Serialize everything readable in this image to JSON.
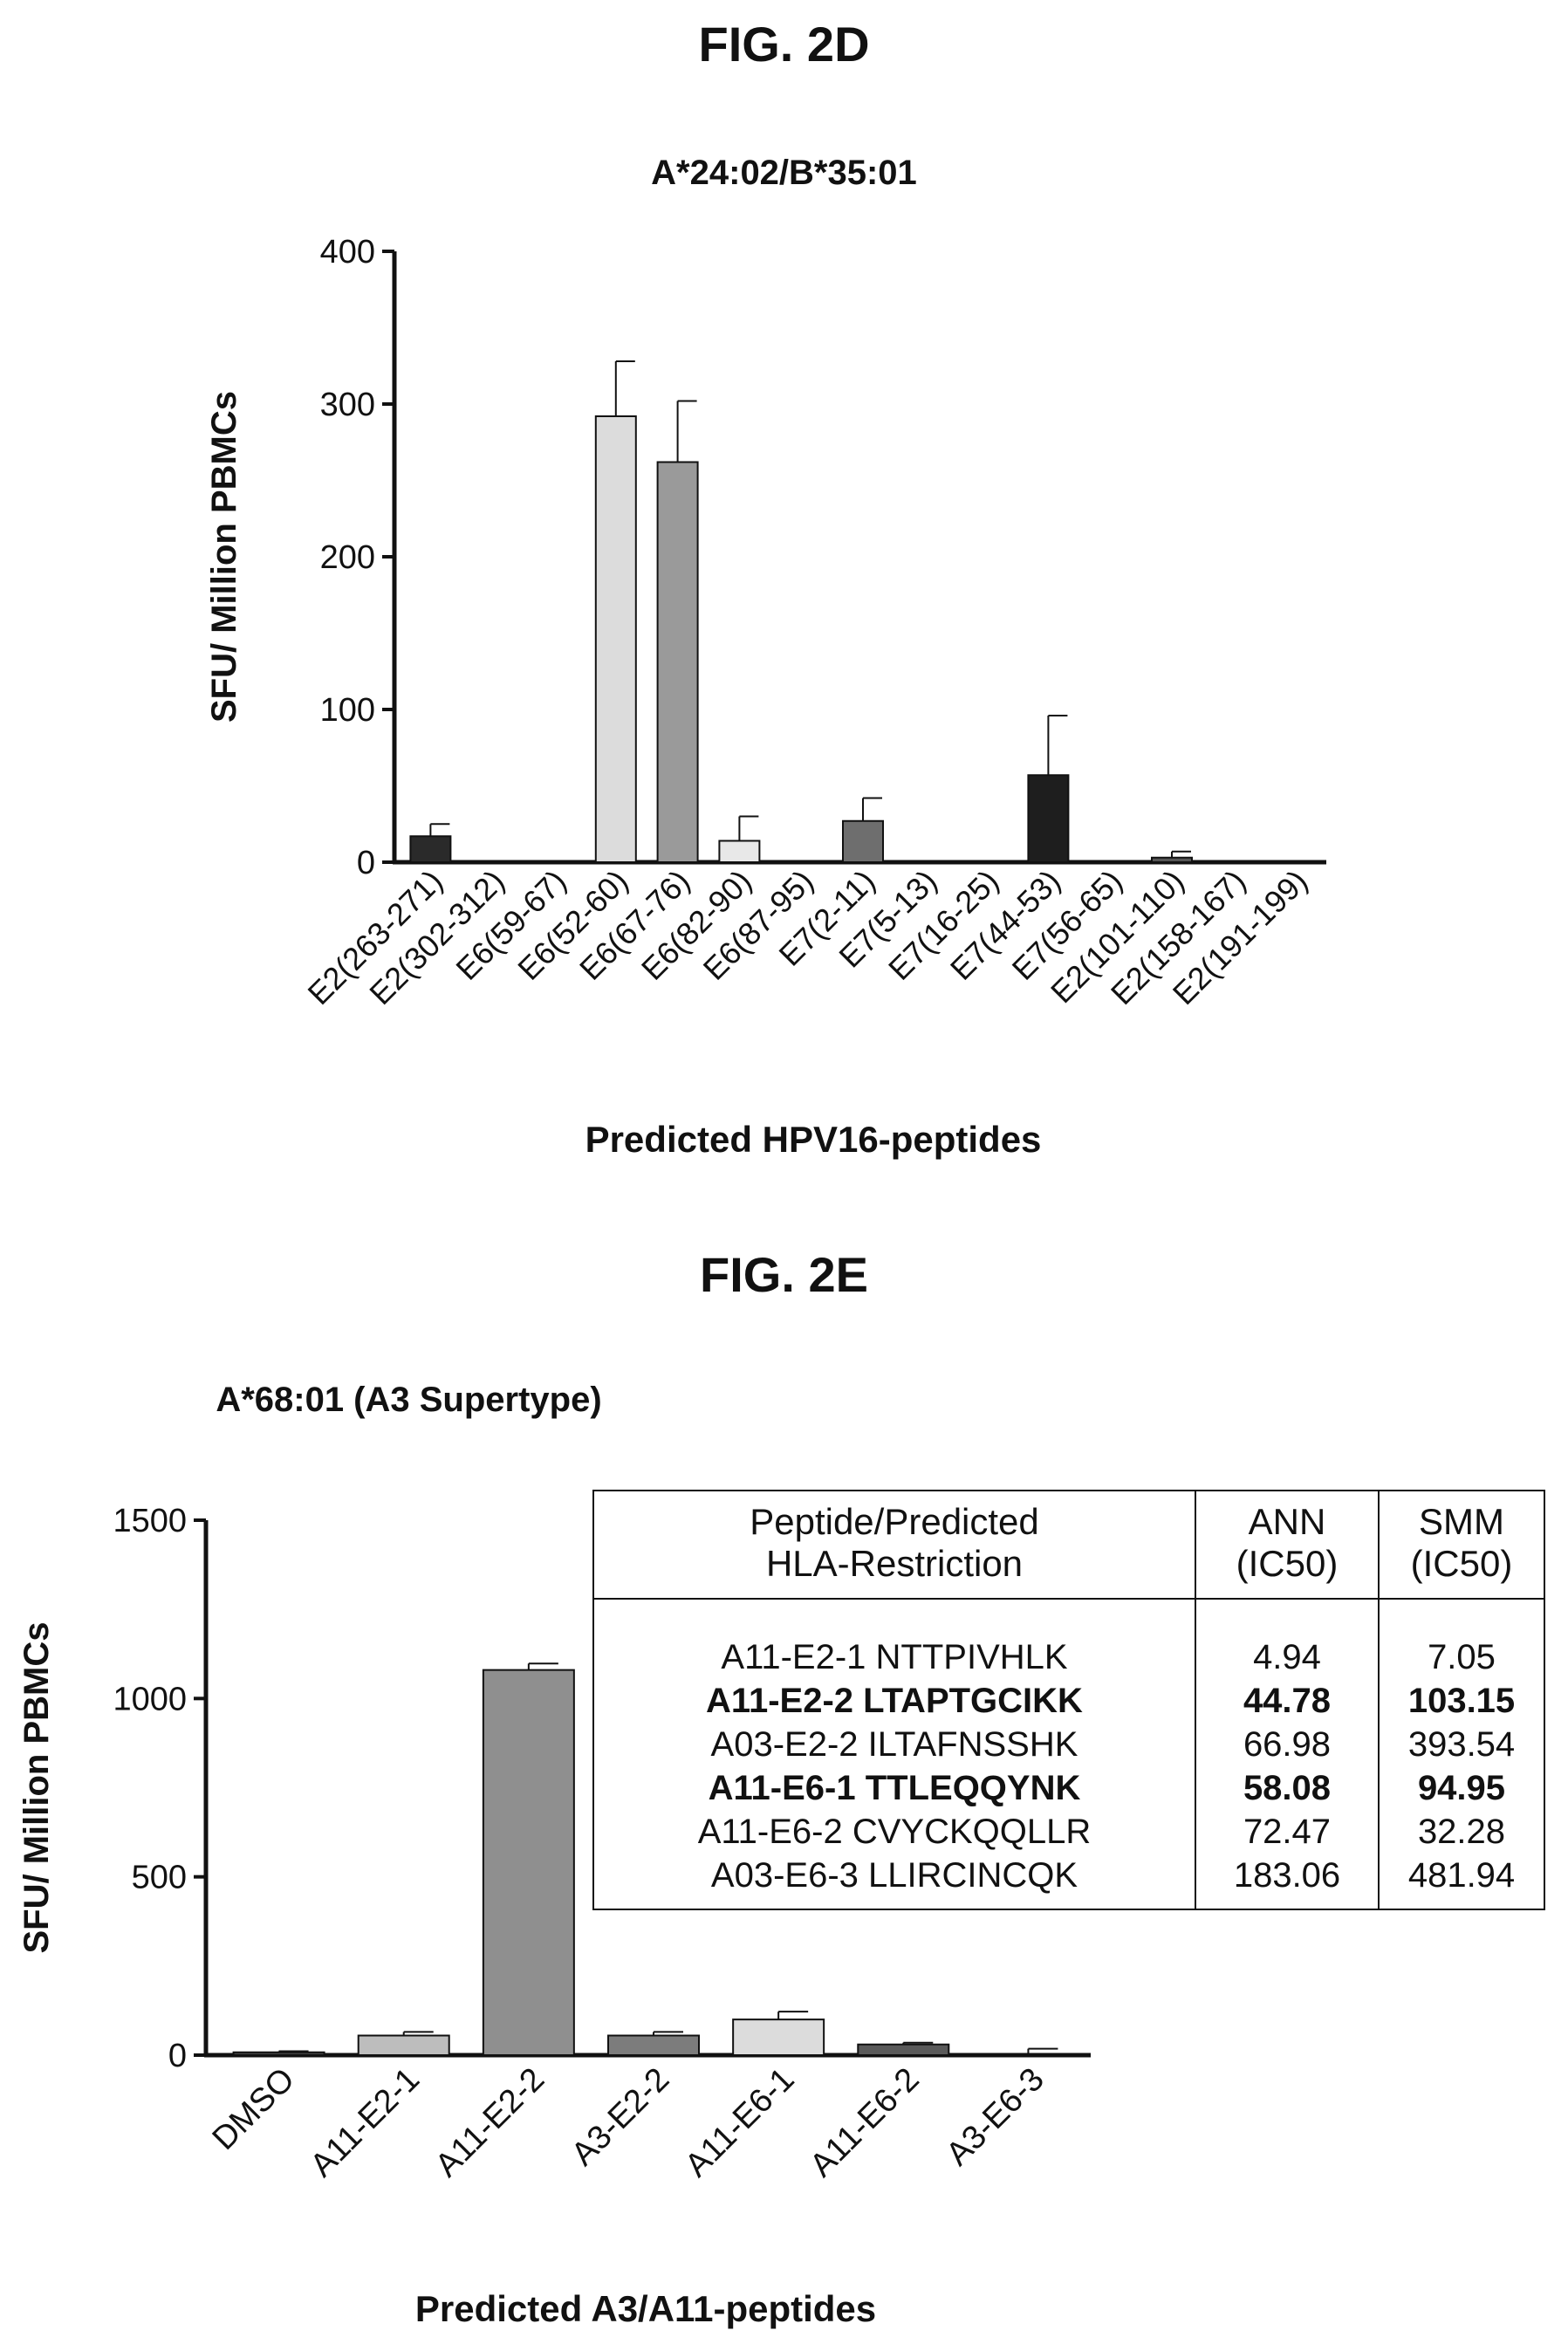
{
  "figure_d": {
    "label": "FIG. 2D"
  },
  "figure_e": {
    "label": "FIG. 2E"
  },
  "chart_data": [
    {
      "type": "bar",
      "title": "A*24:02/B*35:01",
      "xlabel": "Predicted HPV16-peptides",
      "ylabel": "SFU/ Million PBMCs",
      "ylim": [
        0,
        400
      ],
      "yticks": [
        0,
        100,
        200,
        300,
        400
      ],
      "categories": [
        "E2(263-271)",
        "E2(302-312)",
        "E6(59-67)",
        "E6(52-60)",
        "E6(67-76)",
        "E6(82-90)",
        "E6(87-95)",
        "E7(2-11)",
        "E7(5-13)",
        "E7(16-25)",
        "E7(44-53)",
        "E7(56-65)",
        "E2(101-110)",
        "E2(158-167)",
        "E2(191-199)"
      ],
      "values": [
        17,
        0,
        0,
        292,
        262,
        14,
        0,
        27,
        0,
        0,
        57,
        0,
        3,
        0,
        0
      ],
      "errors": [
        8,
        0,
        0,
        36,
        40,
        16,
        0,
        15,
        0,
        0,
        39,
        0,
        4,
        0,
        0
      ],
      "bar_colors": [
        "#2a2a2a",
        "#2a2a2a",
        "#2a2a2a",
        "#dcdcdc",
        "#9a9a9a",
        "#e8e8e8",
        "#2a2a2a",
        "#6e6e6e",
        "#2a2a2a",
        "#2a2a2a",
        "#1e1e1e",
        "#2a2a2a",
        "#555555",
        "#2a2a2a",
        "#2a2a2a"
      ],
      "grid": false
    },
    {
      "type": "bar",
      "title": "A*68:01 (A3 Supertype)",
      "xlabel": "Predicted A3/A11-peptides",
      "ylabel": "SFU/ Million PBMCs",
      "ylim": [
        0,
        1500
      ],
      "yticks": [
        0,
        500,
        1000,
        1500
      ],
      "categories": [
        "DMSO",
        "A11-E2-1",
        "A11-E2-2",
        "A3-E2-2",
        "A11-E6-1",
        "A11-E6-2",
        "A3-E6-3"
      ],
      "values": [
        8,
        55,
        1080,
        55,
        100,
        30,
        0
      ],
      "errors": [
        3,
        10,
        18,
        10,
        22,
        5,
        18
      ],
      "bar_colors": [
        "#444444",
        "#bdbdbd",
        "#8f8f8f",
        "#7c7c7c",
        "#dcdcdc",
        "#5a5a5a",
        "#444444"
      ],
      "grid": false,
      "inset_table": {
        "headers": [
          "Peptide/Predicted HLA-Restriction",
          "ANN (IC50)",
          "SMM (IC50)"
        ],
        "rows": [
          {
            "peptide": "A11-E2-1 NTTPIVHLK",
            "ann": "4.94",
            "smm": "7.05",
            "bold": false
          },
          {
            "peptide": "A11-E2-2 LTAPTGCIKK",
            "ann": "44.78",
            "smm": "103.15",
            "bold": true
          },
          {
            "peptide": "A03-E2-2 ILTAFNSSHK",
            "ann": "66.98",
            "smm": "393.54",
            "bold": false
          },
          {
            "peptide": "A11-E6-1 TTLEQQYNK",
            "ann": "58.08",
            "smm": "94.95",
            "bold": true
          },
          {
            "peptide": "A11-E6-2 CVYCKQQLLR",
            "ann": "72.47",
            "smm": "32.28",
            "bold": false
          },
          {
            "peptide": "A03-E6-3 LLIRCINCQK",
            "ann": "183.06",
            "smm": "481.94",
            "bold": false
          }
        ]
      }
    }
  ]
}
